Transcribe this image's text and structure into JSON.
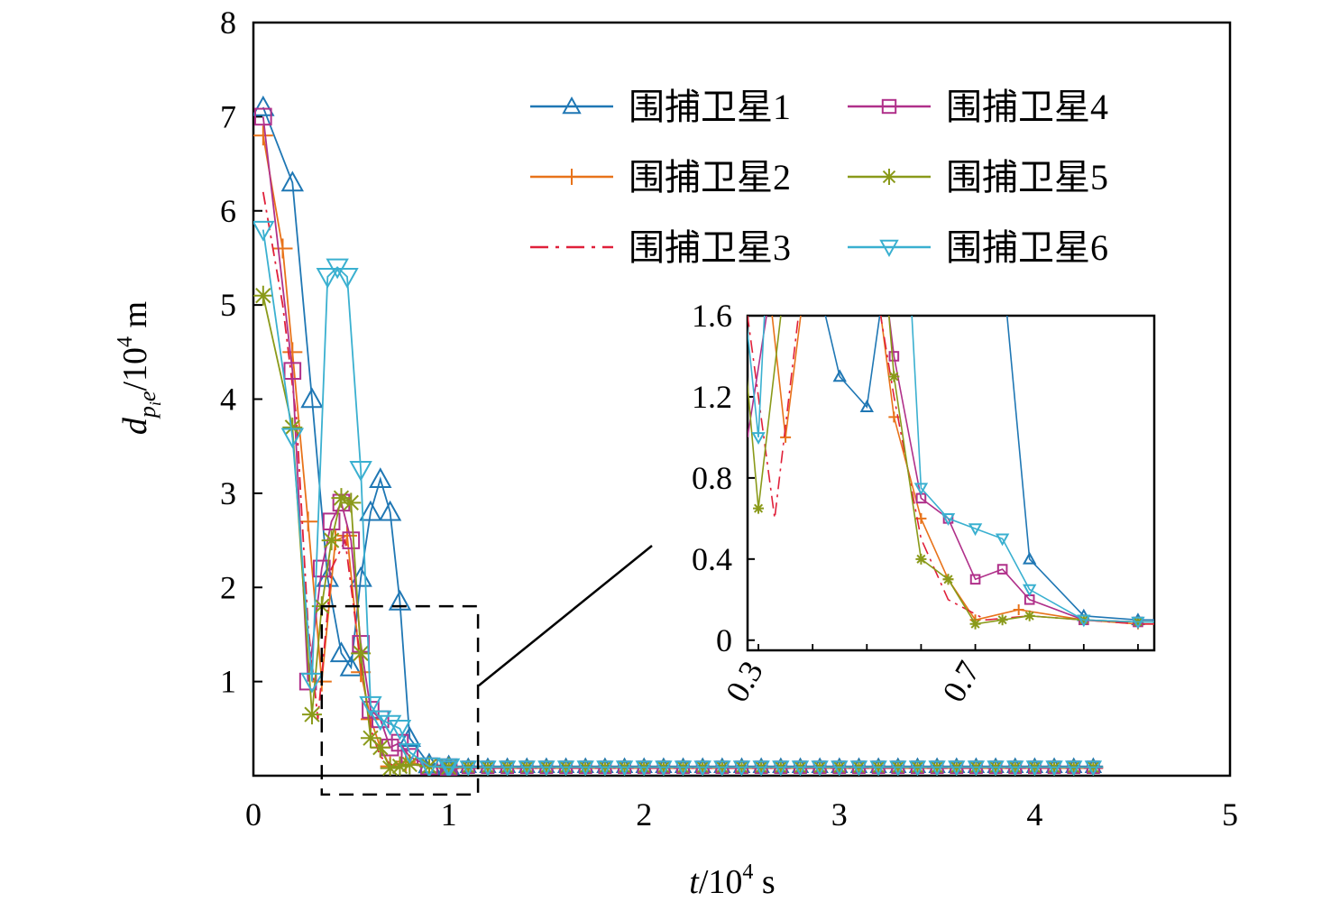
{
  "chart_data": {
    "type": "line",
    "xlabel": {
      "var": "t",
      "unit_base": "/10",
      "unit_exp": "4",
      "unit_suffix": " s"
    },
    "ylabel": {
      "var": "d",
      "sub1": "p",
      "sub2": "i",
      "sub3": "e",
      "unit_base": "/10",
      "unit_exp": "4",
      "unit_suffix": " m"
    },
    "xlim": [
      0,
      5
    ],
    "ylim": [
      0,
      8
    ],
    "x_ticks": [
      "0",
      "1",
      "2",
      "3",
      "4",
      "5"
    ],
    "y_ticks": [
      "1",
      "2",
      "3",
      "4",
      "5",
      "6",
      "7",
      "8"
    ],
    "grid": false,
    "legend_position": "top-right",
    "series": [
      {
        "name": "围捕卫星1",
        "color": "#1f77b4",
        "marker": "triangle-up",
        "x": [
          0.05,
          0.2,
          0.3,
          0.38,
          0.45,
          0.5,
          0.55,
          0.6,
          0.65,
          0.7,
          0.75,
          0.8,
          0.9,
          1.0,
          1.5,
          2.0,
          2.5,
          3.0,
          3.5,
          4.0,
          4.35
        ],
        "y": [
          7.1,
          6.3,
          4.0,
          2.1,
          1.3,
          1.15,
          2.1,
          2.8,
          3.15,
          2.8,
          1.85,
          0.4,
          0.12,
          0.1,
          0.1,
          0.1,
          0.1,
          0.1,
          0.1,
          0.1,
          0.1
        ]
      },
      {
        "name": "围捕卫星2",
        "color": "#e8731a",
        "marker": "plus",
        "x": [
          0.05,
          0.15,
          0.2,
          0.28,
          0.35,
          0.42,
          0.48,
          0.55,
          0.6,
          0.65,
          0.7,
          0.78,
          0.9,
          1.0,
          1.5,
          2.0,
          2.5,
          3.0,
          3.5,
          4.0,
          4.35
        ],
        "y": [
          6.8,
          5.6,
          4.5,
          2.7,
          1.0,
          2.5,
          2.55,
          1.1,
          0.6,
          0.3,
          0.1,
          0.15,
          0.1,
          0.08,
          0.08,
          0.08,
          0.08,
          0.08,
          0.08,
          0.08,
          0.08
        ]
      },
      {
        "name": "围捕卫星3",
        "color": "#e0203a",
        "marker": "none",
        "x": [
          0.05,
          0.15,
          0.22,
          0.28,
          0.33,
          0.4,
          0.47,
          0.55,
          0.6,
          0.65,
          0.72,
          0.8,
          0.9,
          1.0,
          1.5,
          2.0,
          2.5,
          3.0,
          3.5,
          4.0,
          4.35
        ],
        "y": [
          6.2,
          5.0,
          3.8,
          1.6,
          0.6,
          2.2,
          2.5,
          1.2,
          0.5,
          0.2,
          0.1,
          0.12,
          0.1,
          0.08,
          0.08,
          0.08,
          0.08,
          0.08,
          0.08,
          0.08,
          0.08
        ]
      },
      {
        "name": "围捕卫星4",
        "color": "#b0308a",
        "marker": "square",
        "x": [
          0.05,
          0.2,
          0.28,
          0.35,
          0.4,
          0.45,
          0.5,
          0.55,
          0.6,
          0.65,
          0.7,
          0.75,
          0.8,
          0.9,
          1.0,
          1.5,
          2.0,
          2.5,
          3.0,
          3.5,
          4.0,
          4.35
        ],
        "y": [
          7.0,
          4.3,
          1.0,
          2.2,
          2.7,
          2.9,
          2.5,
          1.4,
          0.7,
          0.6,
          0.3,
          0.35,
          0.2,
          0.1,
          0.09,
          0.09,
          0.09,
          0.09,
          0.09,
          0.09,
          0.09,
          0.09
        ]
      },
      {
        "name": "围捕卫星5",
        "color": "#8a9a1a",
        "marker": "asterisk",
        "x": [
          0.05,
          0.2,
          0.3,
          0.35,
          0.4,
          0.45,
          0.5,
          0.55,
          0.6,
          0.65,
          0.7,
          0.75,
          0.8,
          0.9,
          1.0,
          1.5,
          2.0,
          2.5,
          3.0,
          3.5,
          4.0,
          4.35
        ],
        "y": [
          5.1,
          3.7,
          0.65,
          1.8,
          2.5,
          2.95,
          2.9,
          1.3,
          0.4,
          0.3,
          0.08,
          0.1,
          0.12,
          0.1,
          0.09,
          0.09,
          0.09,
          0.09,
          0.09,
          0.09,
          0.09,
          0.09
        ]
      },
      {
        "name": "围捕卫星6",
        "color": "#3ab0d0",
        "marker": "triangle-down",
        "x": [
          0.05,
          0.2,
          0.3,
          0.38,
          0.43,
          0.48,
          0.55,
          0.6,
          0.65,
          0.7,
          0.75,
          0.8,
          0.9,
          1.0,
          1.5,
          2.0,
          2.5,
          3.0,
          3.5,
          4.0,
          4.35
        ],
        "y": [
          5.8,
          3.6,
          1.0,
          5.3,
          5.4,
          5.3,
          3.25,
          0.75,
          0.6,
          0.55,
          0.5,
          0.25,
          0.1,
          0.09,
          0.09,
          0.09,
          0.09,
          0.09,
          0.09,
          0.09,
          0.09
        ]
      }
    ],
    "inset": {
      "xlim": [
        0.28,
        1.03
      ],
      "ylim": [
        -0.05,
        1.6
      ],
      "x_ticks": [
        "0.3",
        "0.7"
      ],
      "y_ticks": [
        "0",
        "0.4",
        "0.8",
        "1.2",
        "1.6"
      ],
      "zoom_region": {
        "x": [
          0.35,
          1.15
        ],
        "y": [
          -0.2,
          1.8
        ]
      }
    }
  }
}
